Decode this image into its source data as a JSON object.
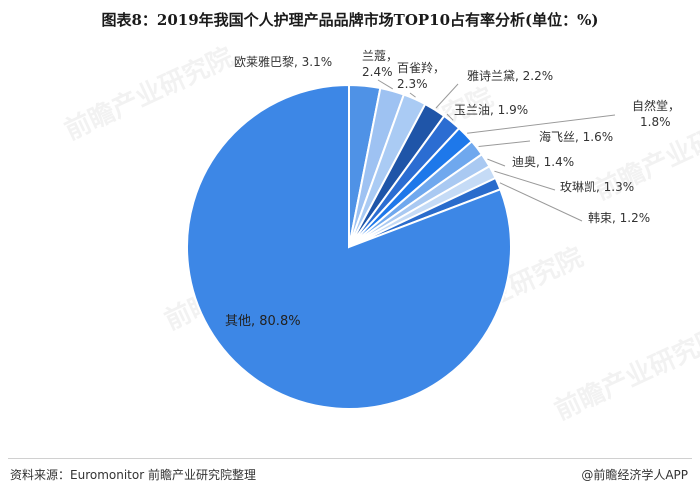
{
  "chart_data": {
    "type": "pie",
    "title": "图表8：2019年我国个人护理产品品牌市场TOP10占有率分析(单位：%)",
    "slices": [
      {
        "label": "欧莱雅巴黎",
        "value": 3.1,
        "display": "3.1%",
        "color": "#4f92e6"
      },
      {
        "label": "兰蔻",
        "value": 2.4,
        "display": "2.4%",
        "color": "#9ec2f2"
      },
      {
        "label": "百雀羚",
        "value": 2.3,
        "display": "2.3%",
        "color": "#aacbf4"
      },
      {
        "label": "雅诗兰黛",
        "value": 2.2,
        "display": "2.2%",
        "color": "#1f55a8"
      },
      {
        "label": "玉兰油",
        "value": 1.9,
        "display": "1.9%",
        "color": "#2b6dd2"
      },
      {
        "label": "自然堂",
        "value": 1.8,
        "display": "1.8%",
        "color": "#1e78ea"
      },
      {
        "label": "海飞丝",
        "value": 1.6,
        "display": "1.6%",
        "color": "#6fa8ee"
      },
      {
        "label": "迪奥",
        "value": 1.4,
        "display": "1.4%",
        "color": "#a9c9f2"
      },
      {
        "label": "玫琳凯",
        "value": 1.3,
        "display": "1.3%",
        "color": "#c5dbf6"
      },
      {
        "label": "韩束",
        "value": 1.2,
        "display": "1.2%",
        "color": "#2a6ccc"
      },
      {
        "label": "其他",
        "value": 80.8,
        "display": "80.8%",
        "color": "#3d87e6"
      }
    ]
  },
  "footer": {
    "source": "资料来源：Euromonitor 前瞻产业研究院整理",
    "brand": "@前瞻经济学人APP"
  },
  "watermark": "前瞻产业研究院"
}
